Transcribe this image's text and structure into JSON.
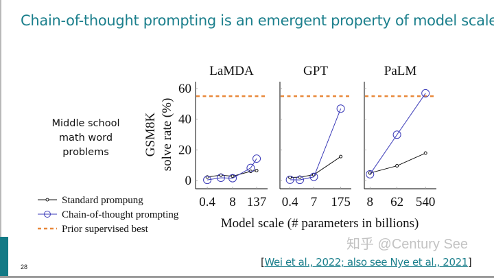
{
  "slide": {
    "title": "Chain-of-thought prompting is an emergent property of model scale",
    "description": [
      "Middle school",
      "math word",
      "problems"
    ],
    "page_number": "28",
    "citation_open": "[",
    "citation_link": "Wei et al., 2022; also see Nye et al., 2021",
    "citation_close": "]",
    "watermark": "知乎 @Century See",
    "colors": {
      "title": "#1b7f8c",
      "standard": "#111111",
      "cot": "#3a3ab8",
      "prior": "#e8883a",
      "accent_bar": "#137a86"
    }
  },
  "chart_data": {
    "type": "line",
    "ylabel": [
      "GSM8K",
      "solve rate (%)"
    ],
    "xlabel": "Model scale (# parameters in billions)",
    "ylim": [
      -3,
      65
    ],
    "yticks": [
      0,
      20,
      40,
      60
    ],
    "x_scale": "log",
    "grid": false,
    "legend_placement": "bottom-left",
    "legend": [
      {
        "key": "standard",
        "label": "Standard prompung"
      },
      {
        "key": "cot",
        "label": "Chain-of-thought prompting"
      },
      {
        "key": "prior",
        "label": "Prior supervised best"
      }
    ],
    "panels": [
      {
        "title": "LaMDA",
        "xlim": [
          0.1,
          500
        ],
        "xticks": [
          0.4,
          8,
          137
        ],
        "xtick_labels": [
          "0.4",
          "8",
          "137"
        ],
        "x": [
          0.4,
          2,
          8,
          68,
          137
        ],
        "series": [
          {
            "key": "standard",
            "values": [
              2.3,
              3.5,
              2.8,
              6.0,
              6.5
            ]
          },
          {
            "key": "cot",
            "values": [
              0.4,
              1.8,
              1.5,
              8.2,
              14.3
            ]
          }
        ],
        "prior_best": 55
      },
      {
        "title": "GPT",
        "xlim": [
          0.12,
          620
        ],
        "xticks": [
          0.4,
          7,
          175
        ],
        "xtick_labels": [
          "0.4",
          "7",
          "175"
        ],
        "x": [
          0.4,
          1.3,
          7,
          175
        ],
        "series": [
          {
            "key": "standard",
            "values": [
              2.0,
              2.2,
              3.8,
              15.6
            ]
          },
          {
            "key": "cot",
            "values": [
              0.5,
              0.4,
              2.4,
              46.9
            ]
          }
        ],
        "prior_best": 55
      },
      {
        "title": "PaLM",
        "xlim": [
          5.2,
          1230
        ],
        "xticks": [
          8,
          62,
          540
        ],
        "xtick_labels": [
          "8",
          "62",
          "540"
        ],
        "x": [
          8,
          62,
          540
        ],
        "series": [
          {
            "key": "standard",
            "values": [
              4.9,
              9.6,
              17.9
            ]
          },
          {
            "key": "cot",
            "values": [
              4.1,
              29.9,
              56.9
            ]
          }
        ],
        "prior_best": 55
      }
    ]
  }
}
